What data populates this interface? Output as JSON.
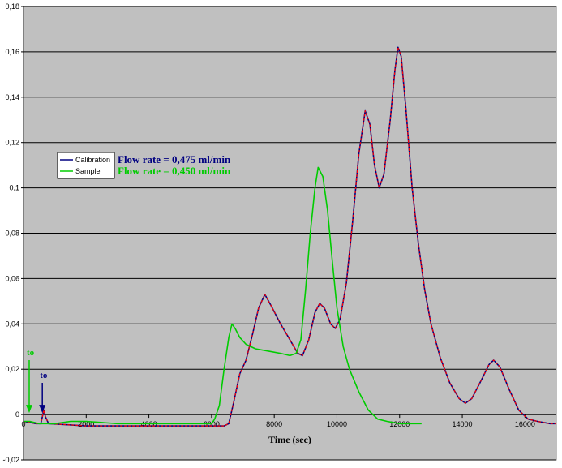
{
  "chart_data": {
    "type": "line",
    "title": "",
    "xlabel": "Time (sec)",
    "ylabel": "",
    "xlim": [
      0,
      17000
    ],
    "ylim": [
      -0.02,
      0.18
    ],
    "x_ticks": [
      0,
      2000,
      4000,
      6000,
      8000,
      10000,
      12000,
      14000,
      16000
    ],
    "x_tick_labels": [
      "0",
      "2000",
      "4000",
      "6000",
      "8000",
      "10000",
      "12000",
      "14000",
      "16000"
    ],
    "y_ticks": [
      -0.02,
      0,
      0.02,
      0.04,
      0.06,
      0.08,
      0.1,
      0.12,
      0.14,
      0.16,
      0.18
    ],
    "y_tick_labels": [
      "-0,02",
      "0",
      "0,02",
      "0,04",
      "0,06",
      "0,08",
      "0,1",
      "0,12",
      "0,14",
      "0,16",
      "0,18"
    ],
    "grid": "horizontal",
    "plot_background": "#c0c0c0",
    "legend_position": "left",
    "series": [
      {
        "name": "Calibration",
        "color": "#000080",
        "accent_color": "#ff0000",
        "points": [
          [
            0,
            -0.003
          ],
          [
            400,
            -0.004
          ],
          [
            550,
            -0.004
          ],
          [
            600,
            -0.001
          ],
          [
            650,
            0.002
          ],
          [
            700,
            -0.001
          ],
          [
            800,
            -0.004
          ],
          [
            2000,
            -0.005
          ],
          [
            4000,
            -0.005
          ],
          [
            6000,
            -0.005
          ],
          [
            6400,
            -0.005
          ],
          [
            6550,
            -0.004
          ],
          [
            6700,
            0.005
          ],
          [
            6900,
            0.018
          ],
          [
            7100,
            0.024
          ],
          [
            7300,
            0.035
          ],
          [
            7500,
            0.047
          ],
          [
            7700,
            0.053
          ],
          [
            7900,
            0.048
          ],
          [
            8200,
            0.04
          ],
          [
            8500,
            0.033
          ],
          [
            8750,
            0.027
          ],
          [
            8900,
            0.026
          ],
          [
            9100,
            0.033
          ],
          [
            9300,
            0.045
          ],
          [
            9450,
            0.049
          ],
          [
            9600,
            0.047
          ],
          [
            9800,
            0.04
          ],
          [
            9950,
            0.038
          ],
          [
            10100,
            0.042
          ],
          [
            10300,
            0.058
          ],
          [
            10500,
            0.085
          ],
          [
            10700,
            0.115
          ],
          [
            10900,
            0.134
          ],
          [
            11050,
            0.128
          ],
          [
            11200,
            0.11
          ],
          [
            11350,
            0.1
          ],
          [
            11500,
            0.106
          ],
          [
            11700,
            0.13
          ],
          [
            11850,
            0.152
          ],
          [
            11950,
            0.162
          ],
          [
            12050,
            0.158
          ],
          [
            12200,
            0.135
          ],
          [
            12400,
            0.1
          ],
          [
            12600,
            0.075
          ],
          [
            12800,
            0.055
          ],
          [
            13000,
            0.04
          ],
          [
            13300,
            0.025
          ],
          [
            13600,
            0.014
          ],
          [
            13900,
            0.007
          ],
          [
            14100,
            0.005
          ],
          [
            14300,
            0.007
          ],
          [
            14600,
            0.015
          ],
          [
            14850,
            0.022
          ],
          [
            15000,
            0.024
          ],
          [
            15200,
            0.021
          ],
          [
            15500,
            0.011
          ],
          [
            15800,
            0.002
          ],
          [
            16100,
            -0.002
          ],
          [
            16400,
            -0.003
          ],
          [
            16800,
            -0.004
          ],
          [
            17000,
            -0.004
          ]
        ]
      },
      {
        "name": "Sample",
        "color": "#00cc00",
        "points": [
          [
            0,
            -0.003
          ],
          [
            200,
            -0.003
          ],
          [
            500,
            -0.004
          ],
          [
            1000,
            -0.004
          ],
          [
            1500,
            -0.003
          ],
          [
            2000,
            -0.003
          ],
          [
            3000,
            -0.004
          ],
          [
            4000,
            -0.004
          ],
          [
            5000,
            -0.004
          ],
          [
            5800,
            -0.004
          ],
          [
            6000,
            -0.004
          ],
          [
            6100,
            -0.002
          ],
          [
            6250,
            0.004
          ],
          [
            6400,
            0.02
          ],
          [
            6550,
            0.034
          ],
          [
            6650,
            0.04
          ],
          [
            6750,
            0.038
          ],
          [
            6900,
            0.034
          ],
          [
            7100,
            0.031
          ],
          [
            7400,
            0.029
          ],
          [
            7800,
            0.028
          ],
          [
            8200,
            0.027
          ],
          [
            8500,
            0.026
          ],
          [
            8700,
            0.027
          ],
          [
            8850,
            0.033
          ],
          [
            9000,
            0.055
          ],
          [
            9150,
            0.08
          ],
          [
            9300,
            0.1
          ],
          [
            9400,
            0.109
          ],
          [
            9550,
            0.105
          ],
          [
            9700,
            0.09
          ],
          [
            9850,
            0.068
          ],
          [
            10000,
            0.047
          ],
          [
            10200,
            0.03
          ],
          [
            10400,
            0.02
          ],
          [
            10700,
            0.01
          ],
          [
            11000,
            0.002
          ],
          [
            11300,
            -0.002
          ],
          [
            11600,
            -0.003
          ],
          [
            12000,
            -0.004
          ],
          [
            12700,
            -0.004
          ]
        ]
      }
    ],
    "legend": {
      "entries": [
        "Calibration",
        "Sample"
      ],
      "flow_rates": [
        "Flow rate = 0,475 ml/min",
        "Flow rate = 0,450 ml/min"
      ]
    },
    "annotations": [
      {
        "text": "to",
        "x": 0,
        "color": "#00cc00"
      },
      {
        "text": "to",
        "x": 600,
        "color": "#000080"
      }
    ]
  }
}
